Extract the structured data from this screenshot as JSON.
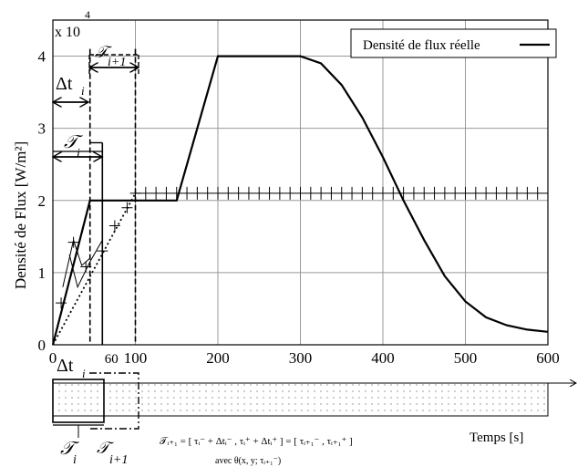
{
  "chart_data": {
    "type": "line",
    "title": "",
    "ylabel": "Densité de Flux [W/m²]",
    "xlabel": "Temps [s]",
    "y_multiplier": {
      "base": "x 10",
      "exponent": "4"
    },
    "xlim": [
      0,
      600
    ],
    "ylim": [
      0,
      45000
    ],
    "x_ticks": [
      0,
      100,
      200,
      300,
      400,
      500,
      600
    ],
    "y_ticks": [
      0,
      10000,
      20000,
      30000,
      40000
    ],
    "y_tick_labels": [
      "0",
      "1",
      "2",
      "3",
      "4"
    ],
    "extra_x_tick": {
      "value": 60,
      "label": "60"
    },
    "grid": true,
    "legend": {
      "position": "top-right",
      "entries": [
        "Densité de flux réelle"
      ]
    },
    "series": [
      {
        "name": "Densité de flux réelle",
        "x": [
          0,
          45,
          100,
          150,
          200,
          300,
          325,
          350,
          375,
          400,
          425,
          450,
          475,
          500,
          525,
          550,
          575,
          600
        ],
        "y": [
          0,
          20000,
          20000,
          20000,
          40000,
          40000,
          39000,
          36000,
          31500,
          26000,
          20000,
          14500,
          9500,
          6000,
          3800,
          2700,
          2100,
          1800
        ]
      }
    ],
    "approximation": {
      "dotted_x": [
        0,
        100
      ],
      "dotted_y": [
        0,
        21000
      ],
      "steps_x": [
        0,
        60,
        100
      ],
      "steps_y": [
        0,
        20000,
        20000
      ]
    },
    "ticked_level": {
      "y": 21000,
      "x_start": 100,
      "x_end": 600,
      "step": 12.5
    },
    "annotations": {
      "delta_t_i": "Δt",
      "delta_t_i_sub": "i",
      "tau_i": "𝒯",
      "tau_i_sub": "i",
      "tau_i1": "𝒯",
      "tau_i1_sub": "i+1",
      "formula": "𝒯ᵢ₊₁ = [ τᵢ⁻ + Δtᵢ⁻ , τᵢ⁺ + Δtᵢ⁺ ] = [ τᵢ₊₁⁻ , τᵢ₊₁⁺ ]",
      "formula_sub": "avec θ(x, y; τᵢ₊₁⁻)"
    }
  }
}
